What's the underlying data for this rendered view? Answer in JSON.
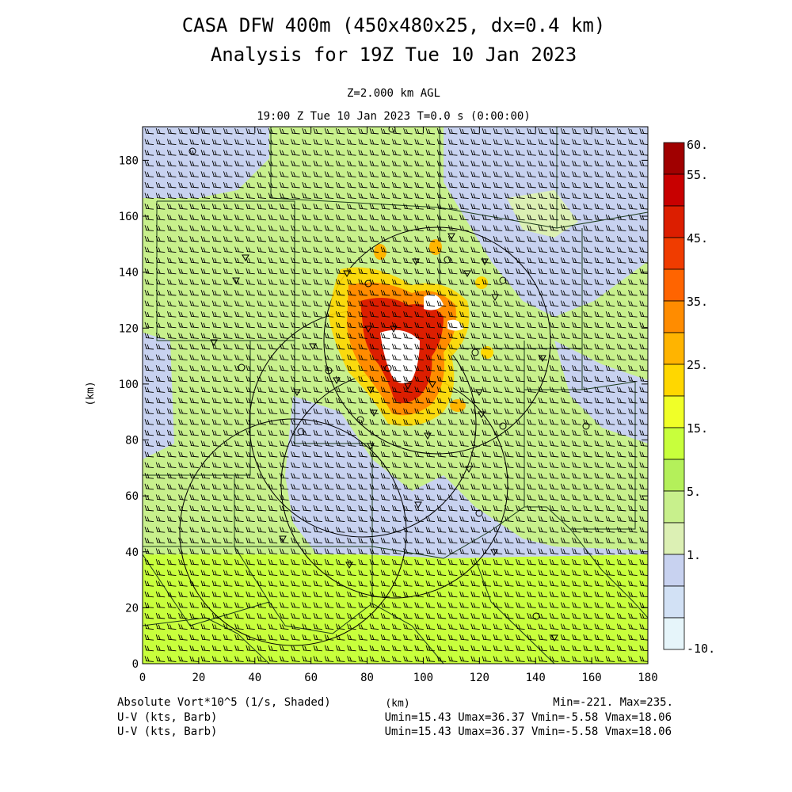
{
  "title_line1": "CASA DFW 400m (450x480x25, dx=0.4 km)",
  "title_line2": "Analysis for 19Z Tue 10 Jan 2023",
  "subtitle_level": "Z=2.000 km AGL",
  "subtitle_time": "19:00 Z Tue 10 Jan 2023    T=0.0 s (0:00:00)",
  "axes": {
    "x_ticks": [
      0,
      20,
      40,
      60,
      80,
      100,
      120,
      140,
      160,
      180
    ],
    "y_ticks": [
      0,
      20,
      40,
      60,
      80,
      100,
      120,
      140,
      160,
      180
    ],
    "x_range": [
      0,
      180
    ],
    "y_range": [
      0,
      192
    ],
    "xlabel": "(km)",
    "ylabel": "(km)"
  },
  "colorbar": {
    "labels": [
      "60.",
      "55.",
      "45.",
      "35.",
      "25.",
      "15.",
      "5.",
      "1.",
      "-10."
    ],
    "colors": [
      "#a00000",
      "#c80000",
      "#dc1e00",
      "#f03c00",
      "#ff6400",
      "#ff8c00",
      "#ffb400",
      "#ffd700",
      "#f0ff28",
      "#c8ff3c",
      "#b4f05a",
      "#c8f08c",
      "#dcf0b4",
      "#c8d2f0",
      "#d2e1f5",
      "#e6f5fa"
    ]
  },
  "footer": {
    "field_label": "Absolute Vort*10^5 (1/s, Shaded)",
    "xunit": "(km)",
    "minmax": "Min=-221. Max=235.",
    "wind1_label": "U-V (kts, Barb)",
    "wind1_stats": "Umin=15.43 Umax=36.37 Vmin=-5.58 Vmax=18.06",
    "wind2_label": "U-V (kts, Barb)",
    "wind2_stats": "Umin=15.43 Umax=36.37 Vmin=-5.58 Vmax=18.06"
  },
  "colors": {
    "background_green": "#c8f08c",
    "lowvort_blue": "#c8d2f0",
    "south_green": "#c8ff3c",
    "hotspot_red": "#dc1e00",
    "hotspot_orange": "#ff8c00",
    "hotspot_yellow": "#ffd700"
  }
}
